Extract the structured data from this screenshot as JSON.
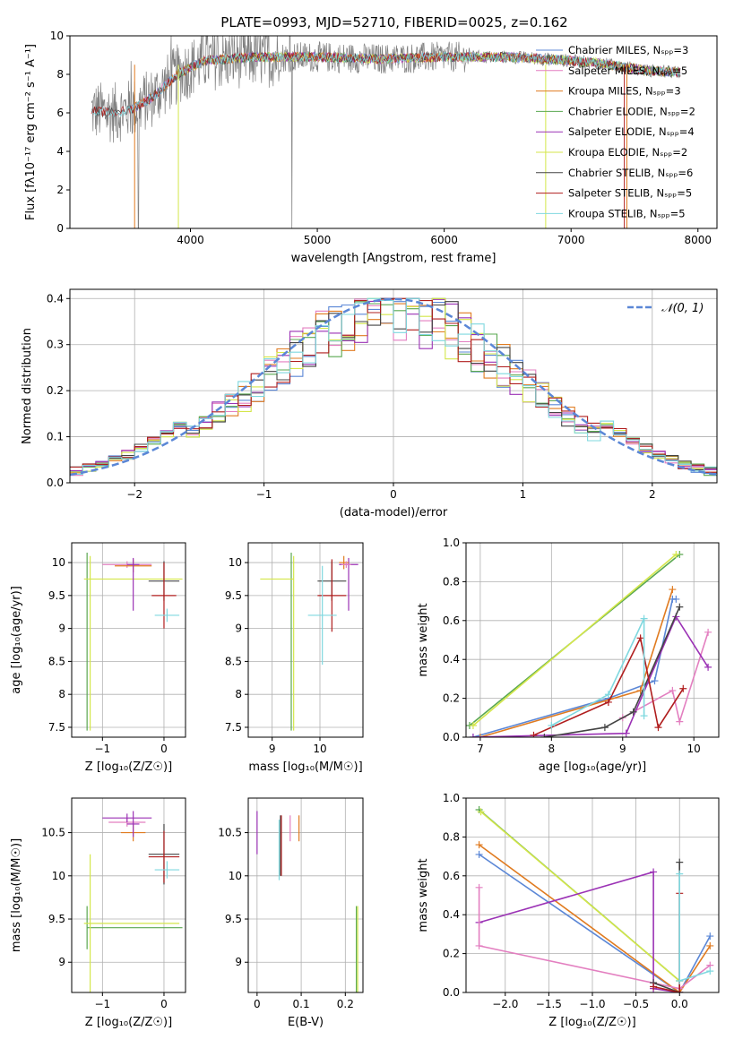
{
  "title": "PLATE=0993, MJD=52710, FIBERID=0025, z=0.162",
  "chart_data": [
    {
      "id": "spectrum",
      "type": "line",
      "xlabel": "wavelength [Angstrom, rest frame]",
      "ylabel": "Flux [fλ10⁻¹⁷ erg cm⁻² s⁻¹ A⁻¹]",
      "xlim": [
        3050,
        8150
      ],
      "ylim": [
        0,
        10
      ],
      "xticks": [
        4000,
        5000,
        6000,
        7000,
        8000
      ],
      "yticks": [
        0,
        2,
        4,
        6,
        8,
        10
      ],
      "legend_position": "top-right",
      "observed": {
        "color": "#808080"
      },
      "models": [
        {
          "name": "Chabrier MILES, Nₛₚₚ=3",
          "color": "#5b87d6",
          "start": 3540
        },
        {
          "name": "Salpeter MILES, Nₛₚₚ=5",
          "color": "#e37fc0",
          "start": 3540
        },
        {
          "name": "Kroupa MILES, Nₛₚₚ=3",
          "color": "#e07b20",
          "start": 3540
        },
        {
          "name": "Chabrier ELODIE, Nₛₚₚ=2",
          "color": "#5aa850",
          "start": 3900
        },
        {
          "name": "Salpeter ELODIE, Nₛₚₚ=4",
          "color": "#9b32b5",
          "start": 3900
        },
        {
          "name": "Kroupa ELODIE, Nₛₚₚ=2",
          "color": "#d4e64a",
          "start": 3900
        },
        {
          "name": "Chabrier STELIB, Nₛₚₚ=6",
          "color": "#444444",
          "start": 3220
        },
        {
          "name": "Salpeter STELIB, Nₛₚₚ=5",
          "color": "#b01e1e",
          "start": 3220
        },
        {
          "name": "Kroupa STELIB, Nₛₚₚ=5",
          "color": "#7fd8df",
          "start": 3220
        }
      ],
      "continuum": {
        "x": [
          3220,
          3400,
          3540,
          3700,
          3900,
          4100,
          4500,
          5000,
          5500,
          6000,
          6500,
          6800,
          7200,
          7600,
          7850
        ],
        "y": [
          6.1,
          6.0,
          6.2,
          6.8,
          8.0,
          8.7,
          8.9,
          8.9,
          8.8,
          8.9,
          8.9,
          8.8,
          8.6,
          8.2,
          8.1
        ]
      }
    },
    {
      "id": "residuals",
      "type": "step",
      "xlabel": "(data-model)/error",
      "ylabel": "Normed distribution",
      "xlim": [
        -2.5,
        2.5
      ],
      "ylim": [
        0,
        0.42
      ],
      "xticks": [
        -2,
        -1,
        0,
        1,
        2
      ],
      "yticks": [
        0.0,
        0.1,
        0.2,
        0.3,
        0.4
      ],
      "legend": "𝒩(0, 1)",
      "legend_position": "top-right",
      "reference_curve": {
        "type": "normal",
        "mean": 0,
        "sigma": 1,
        "color": "#5b87d6"
      },
      "bin_width": 0.1,
      "bin_start": -2.5
    },
    {
      "id": "age-vs-Z",
      "type": "errorbar",
      "xlabel": "Z [log₁₀(Z/Z☉)]",
      "ylabel": "age  [log₁₀(age/yr)]",
      "xlim": [
        -1.5,
        0.35
      ],
      "ylim": [
        7.35,
        10.3
      ],
      "xticks": [
        -1,
        0
      ],
      "yticks": [
        7.5,
        8.0,
        8.5,
        9.0,
        9.5,
        10.0
      ],
      "points": [
        {
          "x": -1.25,
          "y": 9.75,
          "xerr": 0.0,
          "yerr": [
            2.3,
            0.4
          ],
          "color": "#5aa850"
        },
        {
          "x": -1.2,
          "y": 9.75,
          "xerr": [
            0.1,
            1.5
          ],
          "yerr": [
            2.3,
            0.35
          ],
          "color": "#d4e64a"
        },
        {
          "x": -0.6,
          "y": 9.97,
          "xerr": 0.4,
          "yerr": 0.05,
          "color": "#e37fc0"
        },
        {
          "x": -0.5,
          "y": 9.95,
          "xerr": 0.3,
          "yerr": 0.1,
          "color": "#e07b20"
        },
        {
          "x": -0.5,
          "y": 9.97,
          "xerr": 0.1,
          "yerr": [
            0.7,
            0.1
          ],
          "color": "#9b32b5"
        },
        {
          "x": 0.0,
          "y": 9.72,
          "xerr": 0.25,
          "yerr": [
            0.3,
            0.3
          ],
          "color": "#444444"
        },
        {
          "x": 0.0,
          "y": 9.5,
          "xerr": 0.2,
          "yerr": [
            0.5,
            0.5
          ],
          "color": "#b01e1e"
        },
        {
          "x": 0.05,
          "y": 9.2,
          "xerr": 0.2,
          "yerr": 0.1,
          "color": "#7fd8df"
        }
      ]
    },
    {
      "id": "age-vs-mass",
      "type": "errorbar",
      "xlabel": "mass [log₁₀(M/M☉)]",
      "ylabel": "",
      "xlim": [
        8.5,
        10.9
      ],
      "ylim": [
        7.35,
        10.3
      ],
      "xticks": [
        9,
        10
      ],
      "yticks": [
        7.5,
        8.0,
        8.5,
        9.0,
        9.5,
        10.0
      ],
      "points": [
        {
          "x": 9.4,
          "y": 9.75,
          "xerr": 0.0,
          "yerr": [
            2.3,
            0.4
          ],
          "color": "#5aa850"
        },
        {
          "x": 9.45,
          "y": 9.75,
          "xerr": [
            0.7,
            0.0
          ],
          "yerr": [
            2.3,
            0.35
          ],
          "color": "#d4e64a"
        },
        {
          "x": 10.6,
          "y": 9.97,
          "xerr": 0.2,
          "yerr": [
            0.7,
            0.1
          ],
          "color": "#9b32b5"
        },
        {
          "x": 10.5,
          "y": 10.0,
          "xerr": 0.1,
          "yerr": 0.1,
          "color": "#e07b20"
        },
        {
          "x": 10.25,
          "y": 9.72,
          "xerr": 0.3,
          "yerr": 0.3,
          "color": "#444444"
        },
        {
          "x": 10.25,
          "y": 9.5,
          "xerr": 0.3,
          "yerr": 0.55,
          "color": "#b01e1e"
        },
        {
          "x": 10.05,
          "y": 9.2,
          "xerr": 0.3,
          "yerr": 0.75,
          "color": "#7fd8df"
        },
        {
          "x": 10.55,
          "y": 9.97,
          "xerr": 0.1,
          "yerr": 0.05,
          "color": "#e37fc0"
        }
      ]
    },
    {
      "id": "weight-vs-age",
      "type": "line",
      "xlabel": "age  [log₁₀(age/yr)]",
      "ylabel": "mass weight",
      "xlim": [
        6.8,
        10.35
      ],
      "ylim": [
        0,
        1
      ],
      "xticks": [
        7,
        8,
        9,
        10
      ],
      "yticks": [
        0.0,
        0.2,
        0.4,
        0.6,
        0.8,
        1.0
      ],
      "series": [
        {
          "color": "#5b87d6",
          "x": [
            6.9,
            8.8,
            9.45,
            9.7,
            9.75
          ],
          "y": [
            0.0,
            0.2,
            0.29,
            0.71,
            0.71
          ]
        },
        {
          "color": "#e37fc0",
          "x": [
            9.0,
            9.7,
            9.8,
            10.2
          ],
          "y": [
            0.1,
            0.24,
            0.08,
            0.54
          ]
        },
        {
          "color": "#e07b20",
          "x": [
            7.0,
            9.25,
            9.7
          ],
          "y": [
            0.0,
            0.24,
            0.76
          ]
        },
        {
          "color": "#5aa850",
          "x": [
            6.85,
            9.8
          ],
          "y": [
            0.06,
            0.94
          ]
        },
        {
          "color": "#9b32b5",
          "x": [
            6.9,
            9.05,
            9.75,
            10.2
          ],
          "y": [
            0.0,
            0.02,
            0.62,
            0.36
          ]
        },
        {
          "color": "#d4e64a",
          "x": [
            6.9,
            9.75
          ],
          "y": [
            0.06,
            0.94
          ]
        },
        {
          "color": "#444444",
          "x": [
            7.9,
            8.75,
            9.15,
            9.8
          ],
          "y": [
            0.0,
            0.05,
            0.13,
            0.67
          ]
        },
        {
          "color": "#b01e1e",
          "x": [
            7.75,
            8.8,
            9.25,
            9.5,
            9.85
          ],
          "y": [
            0.01,
            0.18,
            0.51,
            0.05,
            0.25
          ]
        },
        {
          "color": "#7fd8df",
          "x": [
            8.0,
            8.8,
            9.3,
            9.3
          ],
          "y": [
            0.06,
            0.22,
            0.61,
            0.11
          ]
        }
      ]
    },
    {
      "id": "mass-vs-Z",
      "type": "errorbar",
      "xlabel": "Z [log₁₀(Z/Z☉)]",
      "ylabel": "mass [log₁₀(M/M☉)]",
      "xlim": [
        -1.5,
        0.35
      ],
      "ylim": [
        8.65,
        10.9
      ],
      "xticks": [
        -1,
        0
      ],
      "yticks": [
        9.0,
        9.5,
        10.0,
        10.5
      ],
      "points": [
        {
          "x": -1.25,
          "y": 9.4,
          "xerr": [
            0.0,
            1.55
          ],
          "yerr": 0.25,
          "color": "#5aa850"
        },
        {
          "x": -1.2,
          "y": 9.45,
          "xerr": [
            0.1,
            1.45
          ],
          "yerr": 0.8,
          "color": "#d4e64a"
        },
        {
          "x": -0.6,
          "y": 10.62,
          "xerr": 0.3,
          "yerr": 0.05,
          "color": "#e37fc0"
        },
        {
          "x": -0.5,
          "y": 10.5,
          "xerr": 0.2,
          "yerr": 0.1,
          "color": "#e07b20"
        },
        {
          "x": -0.5,
          "y": 10.6,
          "xerr": 0.1,
          "yerr": 0.15,
          "color": "#9b32b5"
        },
        {
          "x": -0.6,
          "y": 10.67,
          "xerr": 0.4,
          "yerr": 0.05,
          "color": "#9b32b5"
        },
        {
          "x": 0.0,
          "y": 10.25,
          "xerr": 0.25,
          "yerr": 0.35,
          "color": "#444444"
        },
        {
          "x": 0.0,
          "y": 10.22,
          "xerr": 0.25,
          "yerr": 0.3,
          "color": "#b01e1e"
        },
        {
          "x": 0.05,
          "y": 10.07,
          "xerr": 0.2,
          "yerr": 0.1,
          "color": "#7fd8df"
        }
      ]
    },
    {
      "id": "mass-vs-ebv",
      "type": "errorbar",
      "xlabel": "E(B-V)",
      "ylabel": "",
      "xlim": [
        -0.02,
        0.24
      ],
      "ylim": [
        8.65,
        10.9
      ],
      "xticks": [
        0.0,
        0.1,
        0.2
      ],
      "yticks": [
        9.0,
        9.5,
        10.0,
        10.5
      ],
      "points": [
        {
          "x": 0.0,
          "y": 10.5,
          "xerr": 0.0,
          "yerr": 0.25,
          "color": "#9b32b5"
        },
        {
          "x": 0.05,
          "y": 10.3,
          "xerr": 0.0,
          "yerr": 0.35,
          "color": "#7fd8df"
        },
        {
          "x": 0.053,
          "y": 10.35,
          "xerr": 0.0,
          "yerr": 0.35,
          "color": "#444444"
        },
        {
          "x": 0.055,
          "y": 10.35,
          "xerr": 0.0,
          "yerr": 0.35,
          "color": "#b01e1e"
        },
        {
          "x": 0.075,
          "y": 10.55,
          "xerr": 0.0,
          "yerr": 0.15,
          "color": "#e37fc0"
        },
        {
          "x": 0.095,
          "y": 10.55,
          "xerr": 0.0,
          "yerr": 0.15,
          "color": "#e07b20"
        },
        {
          "x": 0.225,
          "y": 9.0,
          "xerr": 0.0,
          "yerr": 0.65,
          "color": "#5aa850"
        },
        {
          "x": 0.228,
          "y": 9.0,
          "xerr": 0.0,
          "yerr": 0.65,
          "color": "#d4e64a"
        }
      ]
    },
    {
      "id": "weight-vs-Z",
      "type": "line",
      "xlabel": "Z [log₁₀(Z/Z☉)]",
      "ylabel": "mass weight",
      "xlim": [
        -2.45,
        0.45
      ],
      "ylim": [
        0,
        1
      ],
      "xticks": [
        -2.0,
        -1.5,
        -1.0,
        -0.5,
        0.0
      ],
      "yticks": [
        0.0,
        0.2,
        0.4,
        0.6,
        0.8,
        1.0
      ],
      "series": [
        {
          "color": "#5b87d6",
          "x": [
            -2.3,
            0.0,
            0.0,
            0.35
          ],
          "y": [
            0.71,
            0.0,
            0.0,
            0.29
          ]
        },
        {
          "color": "#e07b20",
          "x": [
            -2.3,
            0.0,
            0.35
          ],
          "y": [
            0.76,
            0.0,
            0.24
          ]
        },
        {
          "color": "#5aa850",
          "x": [
            -2.3,
            0.0
          ],
          "y": [
            0.94,
            0.06
          ]
        },
        {
          "color": "#d4e64a",
          "x": [
            -2.28,
            0.0
          ],
          "y": [
            0.93,
            0.06
          ]
        },
        {
          "color": "#9b32b5",
          "x": [
            -2.3,
            -0.3,
            -0.3,
            0.0
          ],
          "y": [
            0.36,
            0.62,
            0.02,
            0.0
          ]
        },
        {
          "color": "#e37fc0",
          "x": [
            -2.3,
            -2.3,
            0.0,
            0.35
          ],
          "y": [
            0.54,
            0.24,
            0.02,
            0.14
          ]
        },
        {
          "color": "#444444",
          "x": [
            -0.3,
            0.0,
            0.0
          ],
          "y": [
            0.05,
            0.0,
            0.67
          ]
        },
        {
          "color": "#b01e1e",
          "x": [
            -0.3,
            0.0,
            0.0
          ],
          "y": [
            0.03,
            0.0,
            0.51
          ]
        },
        {
          "color": "#7fd8df",
          "x": [
            0.0,
            0.0,
            0.35
          ],
          "y": [
            0.61,
            0.06,
            0.11
          ]
        }
      ]
    }
  ]
}
